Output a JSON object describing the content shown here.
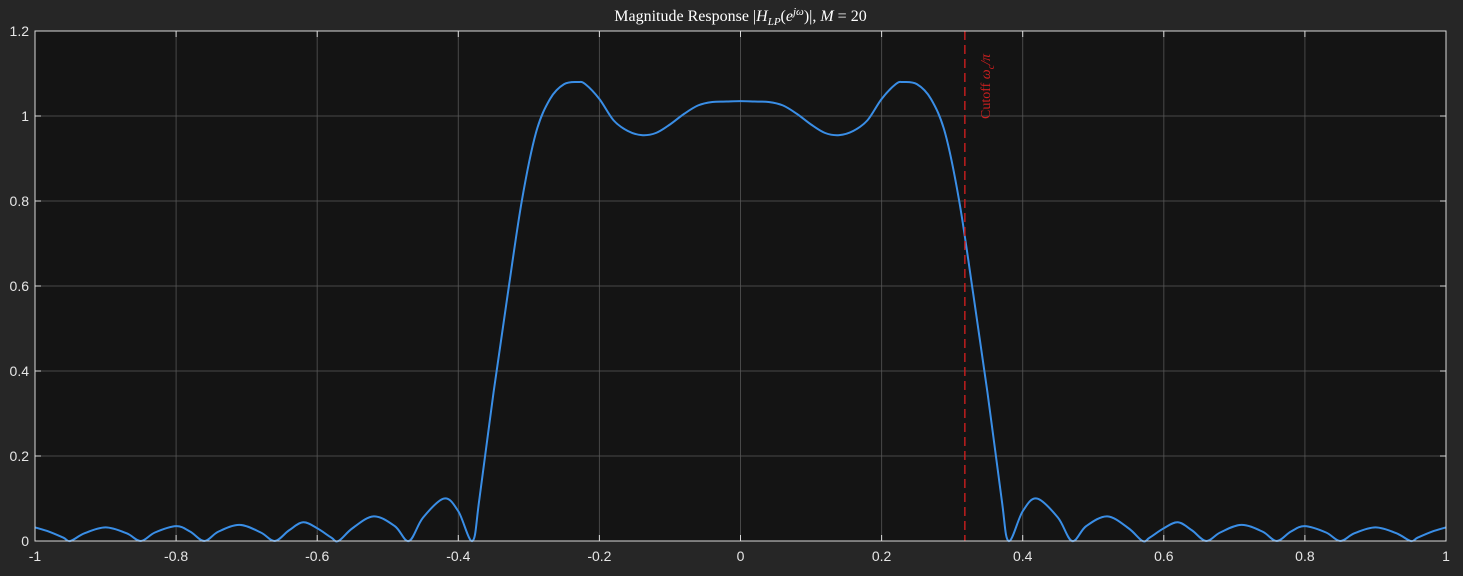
{
  "chart_data": {
    "type": "line",
    "title": {
      "prefix": "Magnitude Response |",
      "h": "H",
      "h_sub": "LP",
      "paren_open": "(",
      "e": "e",
      "e_sup": "jω",
      "paren_close": ")|, ",
      "m": "M",
      "suffix": " = 20"
    },
    "xlim": [
      -1,
      1
    ],
    "ylim": [
      0,
      1.2
    ],
    "x_ticks": [
      -1,
      -0.8,
      -0.6,
      -0.4,
      -0.2,
      0,
      0.2,
      0.4,
      0.6,
      0.8,
      1
    ],
    "x_tick_labels": [
      "-1",
      "-0.8",
      "-0.6",
      "-0.4",
      "-0.2",
      "0",
      "0.2",
      "0.4",
      "0.6",
      "0.8",
      "1"
    ],
    "y_ticks": [
      0,
      0.2,
      0.4,
      0.6,
      0.8,
      1,
      1.2
    ],
    "y_tick_labels": [
      "0",
      "0.2",
      "0.4",
      "0.6",
      "0.8",
      "1",
      "1.2"
    ],
    "grid": true,
    "series": [
      {
        "style": "solid",
        "x": [
          -1,
          -0.98,
          -0.96,
          -0.95,
          -0.93,
          -0.9,
          -0.87,
          -0.85,
          -0.83,
          -0.8,
          -0.78,
          -0.76,
          -0.74,
          -0.71,
          -0.68,
          -0.66,
          -0.64,
          -0.62,
          -0.6,
          -0.58,
          -0.57,
          -0.55,
          -0.52,
          -0.49,
          -0.47,
          -0.45,
          -0.42,
          -0.4,
          -0.38,
          -0.37,
          -0.35,
          -0.33,
          -0.31,
          -0.29,
          -0.27,
          -0.25,
          -0.23,
          -0.22,
          -0.2,
          -0.18,
          -0.16,
          -0.14,
          -0.12,
          -0.1,
          -0.08,
          -0.06,
          -0.04,
          -0.02,
          0,
          0.02,
          0.04,
          0.06,
          0.08,
          0.1,
          0.12,
          0.14,
          0.16,
          0.18,
          0.2,
          0.22,
          0.23,
          0.25,
          0.27,
          0.29,
          0.31,
          0.33,
          0.35,
          0.37,
          0.38,
          0.4,
          0.42,
          0.45,
          0.47,
          0.49,
          0.52,
          0.55,
          0.57,
          0.58,
          0.6,
          0.62,
          0.64,
          0.66,
          0.68,
          0.71,
          0.74,
          0.76,
          0.78,
          0.8,
          0.83,
          0.85,
          0.87,
          0.9,
          0.93,
          0.95,
          0.96,
          0.98,
          1
        ],
        "y": [
          0.032,
          0.022,
          0.008,
          0.0,
          0.018,
          0.032,
          0.018,
          0.0,
          0.02,
          0.035,
          0.022,
          0.0,
          0.022,
          0.038,
          0.02,
          0.0,
          0.025,
          0.044,
          0.03,
          0.008,
          0.0,
          0.03,
          0.058,
          0.035,
          0.0,
          0.055,
          0.1,
          0.07,
          0.0,
          0.1,
          0.35,
          0.58,
          0.8,
          0.96,
          1.04,
          1.075,
          1.08,
          1.075,
          1.04,
          0.99,
          0.965,
          0.955,
          0.96,
          0.98,
          1.005,
          1.025,
          1.033,
          1.034,
          1.035,
          1.034,
          1.033,
          1.025,
          1.005,
          0.98,
          0.96,
          0.955,
          0.965,
          0.99,
          1.04,
          1.075,
          1.08,
          1.075,
          1.04,
          0.96,
          0.8,
          0.58,
          0.35,
          0.1,
          0.0,
          0.07,
          0.1,
          0.055,
          0.0,
          0.035,
          0.058,
          0.03,
          0.0,
          0.008,
          0.03,
          0.044,
          0.025,
          0.0,
          0.02,
          0.038,
          0.022,
          0.0,
          0.022,
          0.035,
          0.02,
          0.0,
          0.018,
          0.032,
          0.018,
          0.0,
          0.008,
          0.022,
          0.032
        ],
        "color": "#3a8ee6"
      }
    ],
    "annotations": [
      {
        "type": "vline",
        "x": 0.318,
        "style": "dashed",
        "color": "#cc1f1f",
        "label_prefix": "Cutoff ",
        "label_omega": "ω",
        "label_omega_sub": "c",
        "label_suffix": "/π"
      }
    ],
    "colors": {
      "figure_bg": "#262626",
      "axes_bg": "#141414",
      "grid": "#5a5a5a",
      "axes_edge": "#d9d9d9",
      "tick_text": "#e6e6e6",
      "title_text": "#ffffff"
    }
  }
}
